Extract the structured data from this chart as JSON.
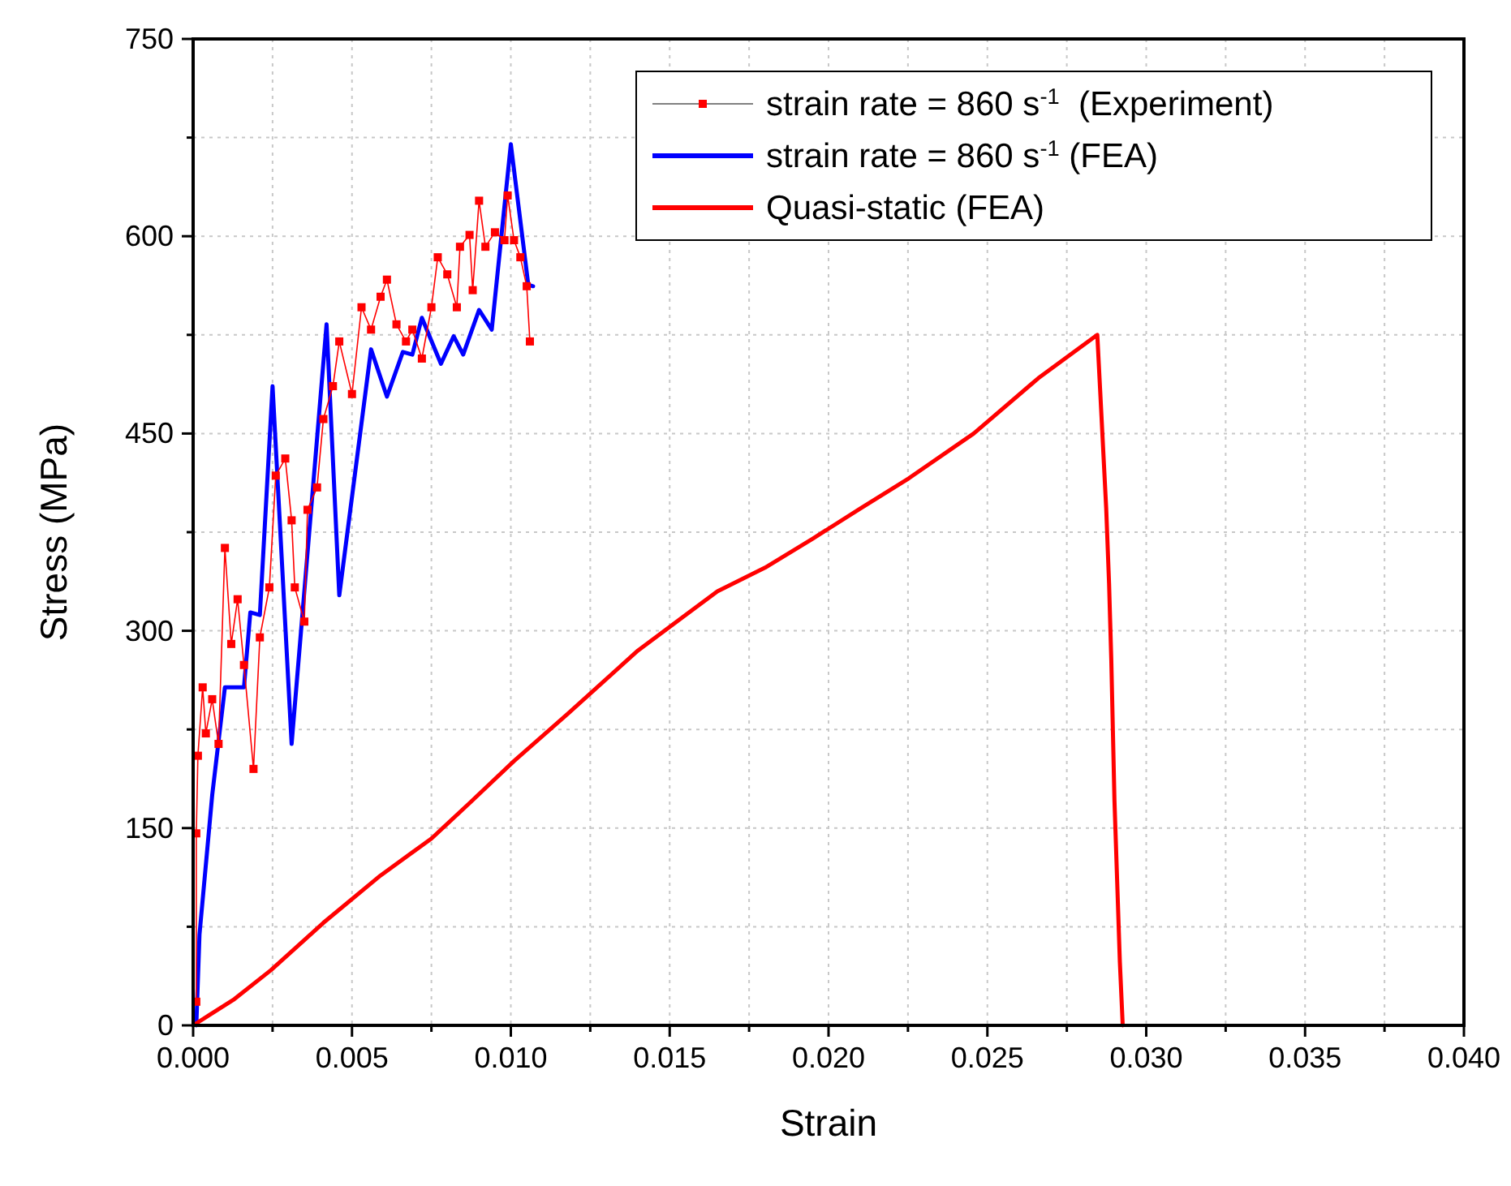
{
  "chart_data": {
    "type": "line",
    "xlabel": "Strain",
    "ylabel": "Stress (MPa)",
    "xlim": [
      0,
      0.04
    ],
    "ylim": [
      0,
      750
    ],
    "xticks": [
      {
        "value": 0,
        "label": "0.000"
      },
      {
        "value": 0.0025,
        "label": null
      },
      {
        "value": 0.005,
        "label": "0.005"
      },
      {
        "value": 0.0075,
        "label": null
      },
      {
        "value": 0.01,
        "label": "0.010"
      },
      {
        "value": 0.0125,
        "label": null
      },
      {
        "value": 0.015,
        "label": "0.015"
      },
      {
        "value": 0.0175,
        "label": null
      },
      {
        "value": 0.02,
        "label": "0.020"
      },
      {
        "value": 0.0225,
        "label": null
      },
      {
        "value": 0.025,
        "label": "0.025"
      },
      {
        "value": 0.0275,
        "label": null
      },
      {
        "value": 0.03,
        "label": "0.030"
      },
      {
        "value": 0.0325,
        "label": null
      },
      {
        "value": 0.035,
        "label": "0.035"
      },
      {
        "value": 0.0375,
        "label": null
      },
      {
        "value": 0.04,
        "label": "0.040"
      }
    ],
    "yticks": [
      0,
      {
        "value": 75,
        "label": null
      },
      150,
      {
        "value": 225,
        "label": null
      },
      300,
      {
        "value": 375,
        "label": null
      },
      450,
      {
        "value": 525,
        "label": null
      },
      600,
      {
        "value": 675,
        "label": null
      },
      750
    ],
    "grid": true,
    "legend": "top right",
    "series": [
      {
        "name": "strain rate = 860 s$^{-1}$  (Experiment)",
        "color": "#ff0000",
        "marker": "square",
        "x": [
          0.0001,
          0.0001,
          0.00015,
          0.0003,
          0.0004,
          0.0006,
          0.0008,
          0.001,
          0.0012,
          0.0014,
          0.0016,
          0.0019,
          0.0021,
          0.0024,
          0.0026,
          0.0029,
          0.0031,
          0.0032,
          0.0035,
          0.0036,
          0.0039,
          0.0041,
          0.0044,
          0.0046,
          0.005,
          0.0053,
          0.0056,
          0.0059,
          0.0061,
          0.0064,
          0.0067,
          0.0069,
          0.0072,
          0.0075,
          0.0077,
          0.008,
          0.0083,
          0.0084,
          0.0087,
          0.0088,
          0.009,
          0.0092,
          0.0095,
          0.0098,
          0.0099,
          0.0101,
          0.0103,
          0.0105,
          0.0106
        ],
        "values": [
          18,
          146,
          205,
          257,
          222,
          248,
          214,
          363,
          290,
          324,
          274,
          195,
          295,
          333,
          418,
          431,
          384,
          333,
          307,
          392,
          409,
          461,
          486,
          520,
          480,
          546,
          529,
          554,
          567,
          533,
          520,
          529,
          507,
          546,
          584,
          571,
          546,
          592,
          601,
          559,
          627,
          592,
          603,
          597,
          631,
          597,
          584,
          562,
          520
        ]
      },
      {
        "name": "strain rate = 860 s$^{-1}$ (FEA)",
        "color": "#0000ff",
        "marker": "none",
        "x": [
          0.0001,
          0.0002,
          0.0006,
          0.001,
          0.0016,
          0.0018,
          0.0021,
          0.0025,
          0.0031,
          0.0042,
          0.0046,
          0.0056,
          0.0061,
          0.0066,
          0.0069,
          0.0072,
          0.0078,
          0.0082,
          0.0085,
          0.009,
          0.0094,
          0.01,
          0.01055,
          0.0107
        ],
        "values": [
          0,
          69,
          175,
          257,
          257,
          314,
          312,
          486,
          214,
          533,
          327,
          514,
          478,
          512,
          510,
          538,
          503,
          524,
          510,
          544,
          529,
          670,
          563,
          562
        ]
      },
      {
        "name": "Quasi-static (FEA)",
        "color": "#ff0000",
        "marker": "none",
        "x": [
          0,
          0.0013,
          0.00245,
          0.0041,
          0.0059,
          0.0075,
          0.0087,
          0.0101,
          0.0118,
          0.014,
          0.0165,
          0.018,
          0.0195,
          0.021,
          0.02253,
          0.02457,
          0.0266,
          0.02846,
          0.02874,
          0.02883,
          0.0289,
          0.029,
          0.02917,
          0.02926
        ],
        "values": [
          0,
          20,
          42,
          78,
          114,
          142,
          169,
          201,
          237,
          285,
          330,
          348,
          370,
          393,
          416,
          450,
          492,
          525,
          393,
          336,
          278,
          171,
          48,
          0
        ]
      }
    ]
  }
}
